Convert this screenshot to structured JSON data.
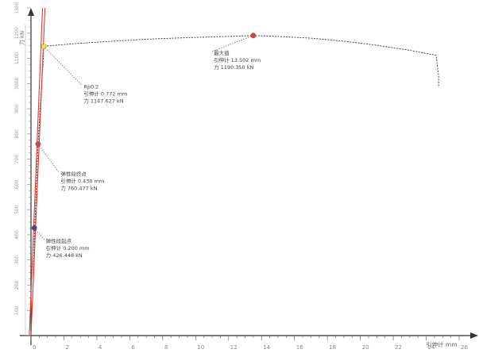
{
  "chart_data": {
    "type": "line",
    "xlabel": "引伸计",
    "xunit": "mm",
    "ylabel": "力",
    "yunit": "kN",
    "xlim": [
      0,
      26
    ],
    "ylim": [
      0,
      1300
    ],
    "xticks": [
      0,
      2,
      4,
      6,
      8,
      10,
      12,
      14,
      16,
      18,
      20,
      22,
      24,
      26
    ],
    "yticks": [
      100,
      200,
      300,
      400,
      500,
      600,
      700,
      800,
      900,
      1000,
      1100,
      1200,
      1300
    ],
    "grid": false,
    "series": [
      {
        "color": "#333333",
        "style": "dashed",
        "points": [
          [
            0.0,
            50
          ],
          [
            0.1,
            150
          ],
          [
            0.15,
            250
          ],
          [
            0.21,
            400
          ],
          [
            0.3,
            550
          ],
          [
            0.36,
            650
          ],
          [
            0.39,
            700
          ],
          [
            0.45,
            780
          ],
          [
            0.55,
            900
          ],
          [
            0.65,
            1000
          ],
          [
            0.74,
            1080
          ],
          [
            0.772,
            1147.6
          ],
          [
            1.5,
            1152
          ],
          [
            3,
            1160
          ],
          [
            5,
            1168
          ],
          [
            7,
            1176
          ],
          [
            9,
            1181
          ],
          [
            11,
            1185
          ],
          [
            12,
            1187
          ],
          [
            13.5,
            1190.4
          ],
          [
            15,
            1187
          ],
          [
            17,
            1180
          ],
          [
            19,
            1168
          ],
          [
            21,
            1152
          ],
          [
            23,
            1132
          ],
          [
            24.6,
            1112
          ],
          [
            24.75,
            1030
          ],
          [
            24.75,
            985
          ]
        ]
      },
      {
        "color": "#e23a2e",
        "style": "solid",
        "points": [
          [
            0.0,
            0
          ],
          [
            0.85,
            1300
          ]
        ]
      },
      {
        "color": "#e23a2e",
        "style": "solid",
        "points": [
          [
            -0.1,
            0
          ],
          [
            0.7,
            1300
          ]
        ]
      }
    ],
    "markers": [
      {
        "name": "Rp0.2",
        "x": 0.772,
        "y": 1147.6,
        "color": "#e6e23c"
      },
      {
        "name": "最大值",
        "x": 13.5,
        "y": 1190.4,
        "color": "#e03a3a"
      },
      {
        "name": "弹性段终点",
        "x": 0.43,
        "y": 760,
        "color": "#d9434f"
      },
      {
        "name": "弹性段起点",
        "x": 0.2,
        "y": 427,
        "color": "#3a4aa8"
      }
    ],
    "annotations": [
      {
        "target": "Rp0.2",
        "lines": [
          "Rp0.2",
          "引伸计 0.772 mm",
          "力 1147.627 kN"
        ],
        "anchor": [
          3.2,
          980
        ]
      },
      {
        "target": "最大值",
        "lines": [
          "最大值",
          "引伸计 13.502 mm",
          "力 1190.350 kN"
        ],
        "anchor": [
          11.1,
          1115
        ]
      },
      {
        "target": "弹性段终点",
        "lines": [
          "弹性段终点",
          "引伸计 0.430 mm",
          "力 760.477 kN"
        ],
        "anchor": [
          1.8,
          635
        ]
      },
      {
        "target": "弹性段起点",
        "lines": [
          "弹性段起点",
          "引伸计 0.200 mm",
          "力 426.448 kN"
        ],
        "anchor": [
          0.9,
          368
        ]
      }
    ]
  }
}
